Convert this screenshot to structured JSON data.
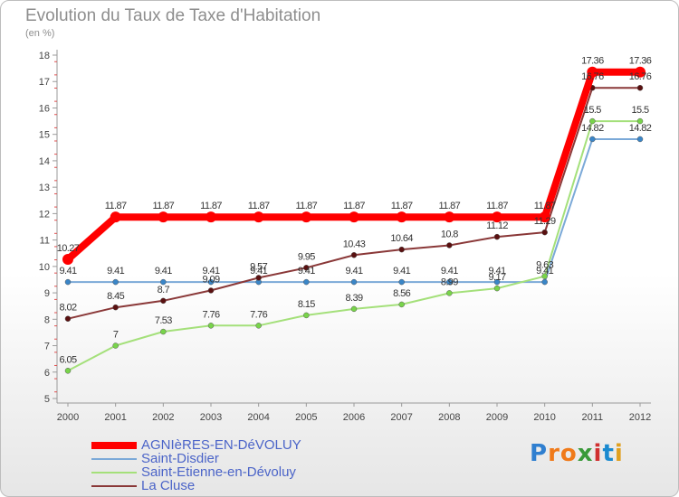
{
  "chart_data": {
    "type": "line",
    "title": "Evolution du Taux de Taxe d'Habitation",
    "subtitle": "(en %)",
    "xlabel": "",
    "ylabel": "(en %)",
    "x": [
      "2000",
      "2001",
      "2002",
      "2003",
      "2004",
      "2005",
      "2006",
      "2007",
      "2008",
      "2009",
      "2010",
      "2011",
      "2012"
    ],
    "ylim": [
      5,
      18
    ],
    "yticks": [
      5,
      6,
      7,
      8,
      9,
      10,
      11,
      12,
      13,
      14,
      15,
      16,
      17,
      18
    ],
    "grid": false,
    "legend_position": "bottom-left",
    "series": [
      {
        "name": "AGNIèRES-EN-DéVOLUY",
        "color": "#ff0000",
        "marker_color": "#ff0000",
        "values": [
          10.27,
          11.87,
          11.87,
          11.87,
          11.87,
          11.87,
          11.87,
          11.87,
          11.87,
          11.87,
          11.87,
          17.36,
          17.36
        ],
        "labels": [
          "10.27",
          "11.87",
          "11.87",
          "11.87",
          "11.87",
          "11.87",
          "11.87",
          "11.87",
          "11.87",
          "11.87",
          "11.87",
          "17.36",
          "17.36"
        ]
      },
      {
        "name": "Saint-Disdier",
        "color": "#7ba9d8",
        "marker_color": "#3a86c8",
        "values": [
          9.41,
          9.41,
          9.41,
          9.41,
          9.41,
          9.41,
          9.41,
          9.41,
          9.41,
          9.41,
          9.41,
          14.82,
          14.82
        ],
        "labels": [
          "9.41",
          "9.41",
          "9.41",
          "9.41",
          "9.41",
          "9.41",
          "9.41",
          "9.41",
          "9.41",
          "9.41",
          "9.41",
          "14.82",
          "14.82"
        ]
      },
      {
        "name": "Saint-Etienne-en-Dévoluy",
        "color": "#a4e07a",
        "marker_color": "#78d44a",
        "values": [
          6.05,
          7,
          7.53,
          7.76,
          7.76,
          8.15,
          8.39,
          8.56,
          8.99,
          9.17,
          9.63,
          15.5,
          15.5
        ],
        "labels": [
          "6.05",
          "7",
          "7.53",
          "7.76",
          "7.76",
          "8.15",
          "8.39",
          "8.56",
          "8.99",
          "9.17",
          "9.63",
          "15.5",
          "15.5"
        ]
      },
      {
        "name": "La Cluse",
        "color": "#8a3838",
        "marker_color": "#5a1010",
        "values": [
          8.02,
          8.45,
          8.7,
          9.09,
          9.57,
          9.95,
          10.43,
          10.64,
          10.8,
          11.12,
          11.29,
          16.76,
          16.76
        ],
        "labels": [
          "8.02",
          "8.45",
          "8.7",
          "9.09",
          "9.57",
          "9.95",
          "10.43",
          "10.64",
          "10.8",
          "11.12",
          "11.29",
          "16.76",
          "16.76"
        ]
      }
    ]
  },
  "brand": {
    "text": "Proxiti",
    "letters": [
      "P",
      "r",
      "o",
      "x",
      "i",
      "t",
      "i"
    ],
    "colors": [
      "#2f7fd0",
      "#f07a1a",
      "#f07a1a",
      "#3a9a3a",
      "#d03030",
      "#1a8ad0",
      "#e0a020"
    ]
  }
}
